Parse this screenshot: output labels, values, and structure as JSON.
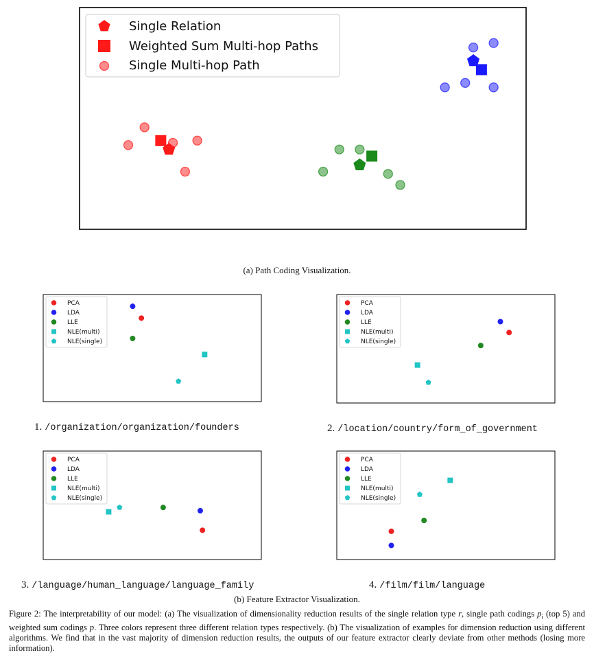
{
  "sub_a_caption": "(a) Path Coding Visualization.",
  "sub_b_caption": "(b) Feature Extractor Visualization.",
  "main_legend": [
    "Single Relation",
    "Weighted Sum Multi-hop Paths",
    "Single Multi-hop Path"
  ],
  "small_legend": [
    "PCA",
    "LDA",
    "LLE",
    "NLE(multi)",
    "NLE(single)"
  ],
  "panel_labels": [
    {
      "num": "1.",
      "path": "/organization/organization/founders"
    },
    {
      "num": "2.",
      "path": "/location/country/form_of_government"
    },
    {
      "num": "3.",
      "path": "/language/human_language/language_family"
    },
    {
      "num": "4.",
      "path": "/film/film/language"
    }
  ],
  "figure_caption": {
    "label": "Figure 2:",
    "text_1": "The interpretability of our model: (a) The visualization of dimensionality reduction results of the single relation type",
    "var_r": "r",
    "text_2": ", single path codings",
    "var_pi": "p",
    "var_i": "i",
    "text_3": "(top 5) and weighted sum codings",
    "var_p": "p",
    "text_4": ". Three colors represent three different relation types respectively. (b) The visualization of examples for dimension reduction using different algorithms. We find that in the vast majority of dimension reduction results, the outputs of our feature extractor clearly deviate from other methods (losing more information)."
  },
  "colors": {
    "red": "#ff1a1a",
    "blue": "#1a1aff",
    "green": "#1a8a1a",
    "pca": "#ee2222",
    "lda": "#2222ee",
    "lle": "#228822",
    "nle": "#22c4c4"
  },
  "chart_data": [
    {
      "type": "scatter",
      "title": "",
      "legend": [
        "Single Relation",
        "Weighted Sum Multi-hop Paths",
        "Single Multi-hop Path"
      ],
      "legend_placement": "top-left",
      "grid": false,
      "series": [
        {
          "name": "Single Relation",
          "marker": "pentagon",
          "points": [
            {
              "x": 2.2,
              "y": 3.6,
              "color": "red"
            },
            {
              "x": 6.9,
              "y": 2.9,
              "color": "green"
            },
            {
              "x": 9.7,
              "y": 7.6,
              "color": "blue"
            }
          ]
        },
        {
          "name": "Weighted Sum Multi-hop Paths",
          "marker": "square",
          "points": [
            {
              "x": 2.0,
              "y": 4.0,
              "color": "red"
            },
            {
              "x": 7.2,
              "y": 3.3,
              "color": "green"
            },
            {
              "x": 9.9,
              "y": 7.2,
              "color": "blue"
            }
          ]
        },
        {
          "name": "Single Multi-hop Path",
          "marker": "circle",
          "points": [
            {
              "x": 1.6,
              "y": 4.6,
              "color": "red"
            },
            {
              "x": 1.2,
              "y": 3.8,
              "color": "red"
            },
            {
              "x": 2.3,
              "y": 3.9,
              "color": "red"
            },
            {
              "x": 2.9,
              "y": 4.0,
              "color": "red"
            },
            {
              "x": 2.6,
              "y": 2.6,
              "color": "red"
            },
            {
              "x": 6.4,
              "y": 3.6,
              "color": "green"
            },
            {
              "x": 6.0,
              "y": 2.6,
              "color": "green"
            },
            {
              "x": 6.9,
              "y": 3.6,
              "color": "green"
            },
            {
              "x": 7.6,
              "y": 2.5,
              "color": "green"
            },
            {
              "x": 7.9,
              "y": 2.0,
              "color": "green"
            },
            {
              "x": 9.7,
              "y": 8.2,
              "color": "blue"
            },
            {
              "x": 10.2,
              "y": 8.4,
              "color": "blue"
            },
            {
              "x": 9.0,
              "y": 6.4,
              "color": "blue"
            },
            {
              "x": 9.5,
              "y": 6.6,
              "color": "blue"
            },
            {
              "x": 10.2,
              "y": 6.4,
              "color": "blue"
            }
          ]
        }
      ]
    },
    {
      "type": "scatter",
      "title": "/organization/organization/founders",
      "legend_placement": "top-left",
      "points": [
        {
          "name": "PCA",
          "x": 4.5,
          "y": 7.8
        },
        {
          "name": "LDA",
          "x": 4.1,
          "y": 8.9
        },
        {
          "name": "LLE",
          "x": 4.1,
          "y": 5.9
        },
        {
          "name": "NLE(multi)",
          "x": 7.4,
          "y": 4.4
        },
        {
          "name": "NLE(single)",
          "x": 6.2,
          "y": 1.9
        }
      ]
    },
    {
      "type": "scatter",
      "title": "/location/country/form_of_government",
      "legend_placement": "top-left",
      "points": [
        {
          "name": "PCA",
          "x": 7.9,
          "y": 6.5
        },
        {
          "name": "LDA",
          "x": 7.5,
          "y": 7.5
        },
        {
          "name": "LLE",
          "x": 6.6,
          "y": 5.3
        },
        {
          "name": "NLE(multi)",
          "x": 3.7,
          "y": 3.5
        },
        {
          "name": "NLE(single)",
          "x": 4.2,
          "y": 1.9
        }
      ]
    },
    {
      "type": "scatter",
      "title": "/language/human_language/language_family",
      "legend_placement": "top-left",
      "points": [
        {
          "name": "PCA",
          "x": 7.3,
          "y": 2.7
        },
        {
          "name": "LDA",
          "x": 7.2,
          "y": 4.5
        },
        {
          "name": "LLE",
          "x": 5.5,
          "y": 4.8
        },
        {
          "name": "NLE(multi)",
          "x": 3.0,
          "y": 4.4
        },
        {
          "name": "NLE(single)",
          "x": 3.5,
          "y": 4.8
        }
      ]
    },
    {
      "type": "scatter",
      "title": "/film/film/language",
      "legend_placement": "top-left",
      "points": [
        {
          "name": "PCA",
          "x": 2.5,
          "y": 2.6
        },
        {
          "name": "LDA",
          "x": 2.5,
          "y": 1.3
        },
        {
          "name": "LLE",
          "x": 4.0,
          "y": 3.6
        },
        {
          "name": "NLE(multi)",
          "x": 5.2,
          "y": 7.3
        },
        {
          "name": "NLE(single)",
          "x": 3.8,
          "y": 6.0
        }
      ]
    }
  ]
}
